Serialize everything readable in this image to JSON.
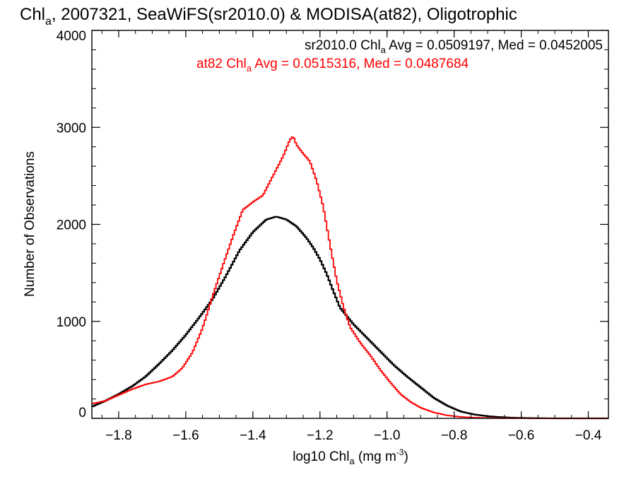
{
  "chart_data": {
    "type": "line",
    "title": {
      "main": "Chl",
      "sub": "a",
      "rest": ", 2007321, SeaWiFS(sr2010.0) & MODISA(at82), Oligotrophic"
    },
    "xlabel": {
      "main": "log10 Chl",
      "sub": "a",
      "unit": " (mg m",
      "sup": "-3",
      "close": ")"
    },
    "ylabel": "Number of Observations",
    "xlim": [
      -1.88,
      -0.34
    ],
    "ylim": [
      0,
      4000
    ],
    "xticks": [
      -1.8,
      -1.6,
      -1.4,
      -1.2,
      -1.0,
      -0.8,
      -0.6,
      -0.4
    ],
    "xtick_labels": [
      "−1.8",
      "−1.6",
      "−1.4",
      "−1.2",
      "−1.0",
      "−0.8",
      "−0.6",
      "−0.4"
    ],
    "yticks": [
      0,
      1000,
      2000,
      3000,
      4000
    ],
    "ytick_labels": [
      "0",
      "1000",
      "2000",
      "3000",
      "4000"
    ],
    "grid": false,
    "legend_position": "top-right",
    "series": [
      {
        "name": "sr2010.0",
        "color": "#000000",
        "annotation": {
          "prefix": "sr2010.0 Chl",
          "sub": "a",
          "suffix": " Avg = 0.0509197, Med = 0.0452005"
        },
        "points": [
          [
            -1.88,
            120
          ],
          [
            -1.84,
            180
          ],
          [
            -1.8,
            250
          ],
          [
            -1.76,
            330
          ],
          [
            -1.72,
            430
          ],
          [
            -1.68,
            560
          ],
          [
            -1.64,
            700
          ],
          [
            -1.6,
            860
          ],
          [
            -1.56,
            1040
          ],
          [
            -1.52,
            1230
          ],
          [
            -1.48,
            1470
          ],
          [
            -1.44,
            1730
          ],
          [
            -1.4,
            1920
          ],
          [
            -1.36,
            2050
          ],
          [
            -1.33,
            2080
          ],
          [
            -1.3,
            2050
          ],
          [
            -1.27,
            1980
          ],
          [
            -1.24,
            1860
          ],
          [
            -1.22,
            1760
          ],
          [
            -1.2,
            1640
          ],
          [
            -1.18,
            1490
          ],
          [
            -1.16,
            1310
          ],
          [
            -1.14,
            1140
          ],
          [
            -1.1,
            970
          ],
          [
            -1.06,
            830
          ],
          [
            -1.02,
            690
          ],
          [
            -0.98,
            550
          ],
          [
            -0.94,
            430
          ],
          [
            -0.9,
            320
          ],
          [
            -0.86,
            210
          ],
          [
            -0.82,
            130
          ],
          [
            -0.78,
            70
          ],
          [
            -0.74,
            40
          ],
          [
            -0.7,
            22
          ],
          [
            -0.66,
            12
          ],
          [
            -0.62,
            6
          ],
          [
            -0.58,
            3
          ],
          [
            -0.54,
            1
          ],
          [
            -0.5,
            0
          ],
          [
            -0.34,
            0
          ]
        ]
      },
      {
        "name": "at82",
        "color": "#ff0000",
        "annotation": {
          "prefix": "at82 Chl",
          "sub": "a",
          "suffix": " Avg = 0.0515316, Med = 0.0487684"
        },
        "points": [
          [
            -1.88,
            150
          ],
          [
            -1.84,
            180
          ],
          [
            -1.8,
            240
          ],
          [
            -1.76,
            300
          ],
          [
            -1.72,
            350
          ],
          [
            -1.68,
            380
          ],
          [
            -1.64,
            430
          ],
          [
            -1.61,
            520
          ],
          [
            -1.58,
            680
          ],
          [
            -1.55,
            930
          ],
          [
            -1.52,
            1260
          ],
          [
            -1.49,
            1570
          ],
          [
            -1.46,
            1870
          ],
          [
            -1.43,
            2150
          ],
          [
            -1.4,
            2230
          ],
          [
            -1.37,
            2300
          ],
          [
            -1.34,
            2500
          ],
          [
            -1.31,
            2700
          ],
          [
            -1.29,
            2870
          ],
          [
            -1.28,
            2910
          ],
          [
            -1.27,
            2820
          ],
          [
            -1.25,
            2730
          ],
          [
            -1.23,
            2650
          ],
          [
            -1.21,
            2450
          ],
          [
            -1.19,
            2180
          ],
          [
            -1.17,
            1790
          ],
          [
            -1.15,
            1420
          ],
          [
            -1.13,
            1150
          ],
          [
            -1.11,
            940
          ],
          [
            -1.08,
            780
          ],
          [
            -1.05,
            650
          ],
          [
            -1.02,
            500
          ],
          [
            -0.99,
            370
          ],
          [
            -0.96,
            250
          ],
          [
            -0.93,
            170
          ],
          [
            -0.9,
            110
          ],
          [
            -0.86,
            60
          ],
          [
            -0.82,
            30
          ],
          [
            -0.78,
            15
          ],
          [
            -0.74,
            8
          ],
          [
            -0.7,
            4
          ],
          [
            -0.66,
            2
          ],
          [
            -0.6,
            1
          ],
          [
            -0.55,
            0
          ],
          [
            -0.34,
            0
          ]
        ]
      }
    ]
  }
}
